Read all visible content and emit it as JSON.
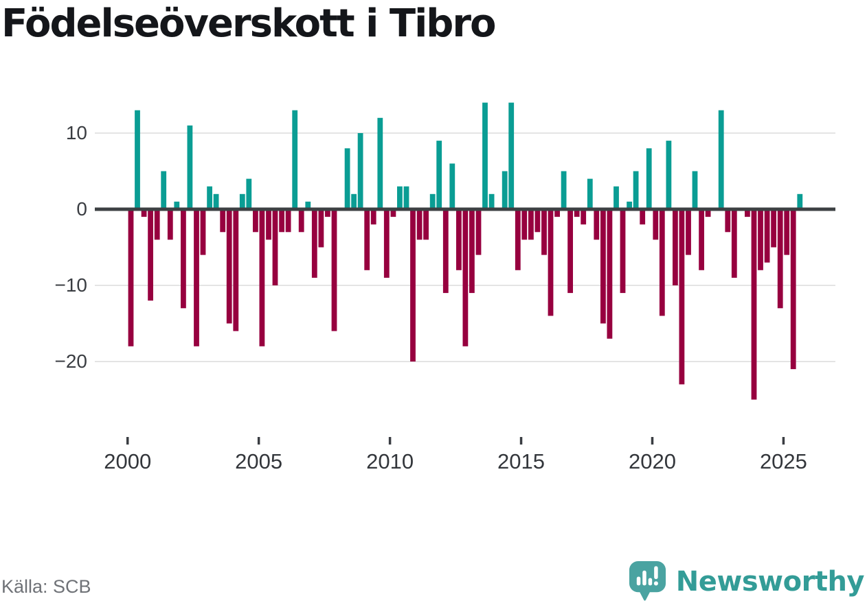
{
  "title": "Födelseöverskott i Tibro",
  "source": "Källa: SCB",
  "branding": {
    "name": "Newsworthy"
  },
  "colors": {
    "positive": "#0a9d94",
    "negative": "#97003f",
    "zero_line": "#3d4043",
    "gridline": "#e4e4e4",
    "tick": "#3a3d42",
    "axis_text": "#33363b",
    "source_text": "#6f7277",
    "brand_bubble": "#4aa3a1",
    "brand_text": "#339c97"
  },
  "chart_data": {
    "type": "bar",
    "title": "Födelseöverskott i Tibro",
    "xlabel": "",
    "ylabel": "",
    "legend": "none",
    "grid": "horizontal",
    "x_unit": "quarter",
    "start": "2000 Q1",
    "end": "2025 Q3",
    "ylim": [
      -27,
      15
    ],
    "y_ticks": [
      10,
      0,
      -10,
      -20
    ],
    "y_tick_labels": [
      "10",
      "0",
      "−10",
      "−20"
    ],
    "x_tick_years": [
      2000,
      2005,
      2010,
      2015,
      2020,
      2025
    ],
    "x_tick_labels": [
      "2000",
      "2005",
      "2010",
      "2015",
      "2020",
      "2025"
    ],
    "categories": [
      "2000 Q1",
      "2000 Q2",
      "2000 Q3",
      "2000 Q4",
      "2001 Q1",
      "2001 Q2",
      "2001 Q3",
      "2001 Q4",
      "2002 Q1",
      "2002 Q2",
      "2002 Q3",
      "2002 Q4",
      "2003 Q1",
      "2003 Q2",
      "2003 Q3",
      "2003 Q4",
      "2004 Q1",
      "2004 Q2",
      "2004 Q3",
      "2004 Q4",
      "2005 Q1",
      "2005 Q2",
      "2005 Q3",
      "2005 Q4",
      "2006 Q1",
      "2006 Q2",
      "2006 Q3",
      "2006 Q4",
      "2007 Q1",
      "2007 Q2",
      "2007 Q3",
      "2007 Q4",
      "2008 Q1",
      "2008 Q2",
      "2008 Q3",
      "2008 Q4",
      "2009 Q1",
      "2009 Q2",
      "2009 Q3",
      "2009 Q4",
      "2010 Q1",
      "2010 Q2",
      "2010 Q3",
      "2010 Q4",
      "2011 Q1",
      "2011 Q2",
      "2011 Q3",
      "2011 Q4",
      "2012 Q1",
      "2012 Q2",
      "2012 Q3",
      "2012 Q4",
      "2013 Q1",
      "2013 Q2",
      "2013 Q3",
      "2013 Q4",
      "2014 Q1",
      "2014 Q2",
      "2014 Q3",
      "2014 Q4",
      "2015 Q1",
      "2015 Q2",
      "2015 Q3",
      "2015 Q4",
      "2016 Q1",
      "2016 Q2",
      "2016 Q3",
      "2016 Q4",
      "2017 Q1",
      "2017 Q2",
      "2017 Q3",
      "2017 Q4",
      "2018 Q1",
      "2018 Q2",
      "2018 Q3",
      "2018 Q4",
      "2019 Q1",
      "2019 Q2",
      "2019 Q3",
      "2019 Q4",
      "2020 Q1",
      "2020 Q2",
      "2020 Q3",
      "2020 Q4",
      "2021 Q1",
      "2021 Q2",
      "2021 Q3",
      "2021 Q4",
      "2022 Q1",
      "2022 Q2",
      "2022 Q3",
      "2022 Q4",
      "2023 Q1",
      "2023 Q2",
      "2023 Q3",
      "2023 Q4",
      "2024 Q1",
      "2024 Q2",
      "2024 Q3",
      "2024 Q4",
      "2025 Q1",
      "2025 Q2",
      "2025 Q3"
    ],
    "series": [
      {
        "name": "Födelseöverskott",
        "values": [
          -18,
          13,
          -1,
          -12,
          -4,
          5,
          -4,
          1,
          -13,
          11,
          -18,
          -6,
          3,
          2,
          -3,
          -15,
          -16,
          2,
          4,
          -3,
          -18,
          -4,
          -10,
          -3,
          -3,
          13,
          -3,
          1,
          -9,
          -5,
          -1,
          -16,
          0,
          8,
          2,
          10,
          -8,
          -2,
          12,
          -9,
          -1,
          3,
          3,
          -20,
          -4,
          -4,
          2,
          9,
          -11,
          6,
          -8,
          -18,
          -11,
          -6,
          14,
          2,
          0,
          5,
          14,
          -8,
          -4,
          -4,
          -3,
          -6,
          -14,
          -1,
          5,
          -11,
          -1,
          -2,
          4,
          -4,
          -15,
          -17,
          3,
          -11,
          1,
          5,
          -2,
          8,
          -4,
          -14,
          9,
          -10,
          -23,
          -6,
          5,
          -8,
          -1,
          0,
          13,
          -3,
          -9,
          0,
          -1,
          -25,
          -8,
          -7,
          -5,
          -13,
          -6,
          -21,
          2
        ]
      }
    ]
  }
}
